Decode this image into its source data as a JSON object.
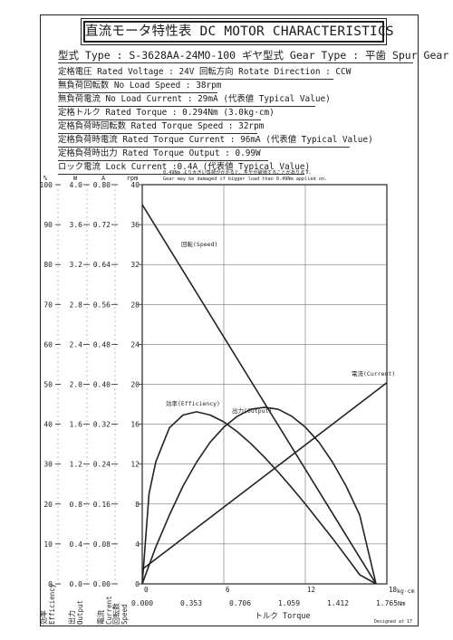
{
  "title": "直流モータ特性表 DC MOTOR CHARACTERISTICS",
  "specs": [
    {
      "text": "型式 Type : S-3628AA-24MO-100  ギヤ型式 Gear Type : 平歯  Spur Gear"
    },
    {
      "text": "定格電圧 Rated Voltage : 24V  回転方向 Rotate Direction : CCW"
    },
    {
      "text": "無負荷回転数 No Load Speed : 38rpm"
    },
    {
      "text": "無負荷電流 No Load Current : 29mA (代表値 Typical Value)"
    },
    {
      "text": "定格トルク Rated Torque : 0.294Nm (3.0kg·cm)"
    },
    {
      "text": "定格負荷時回転数 Rated Torque Speed : 32rpm"
    },
    {
      "text": "定格負荷時電流 Rated Torque Current : 96mA (代表値 Typical Value)"
    },
    {
      "text": "定格負荷時出力 Rated Torque Output : 0.99W"
    },
    {
      "text": "ロック電流 Lock Current :0.4A (代表値 Typical Value)"
    }
  ],
  "warning": {
    "jp": "0.49Nm より大きい負荷がかかると、ギヤが破損することがあります。",
    "en": "Gear may be damaged if bigger load than 0.49Nm applied on."
  },
  "footer": "Designed at 17",
  "colors": {
    "ink": "#222222",
    "grid": "#555555"
  },
  "chart_data": {
    "type": "line",
    "x_axis": {
      "label": "トルク Torque",
      "kgcm_range": [
        0,
        18
      ],
      "kgcm_ticks": [
        "0",
        "6",
        "12",
        "18"
      ],
      "kgcm_unit": "kg·cm",
      "nm_range": [
        0,
        1.765
      ],
      "nm_ticks": [
        "0.000",
        "0.353",
        "0.706",
        "1.059",
        "1.412",
        "1.765"
      ],
      "nm_unit": "Nm"
    },
    "y_axes": [
      {
        "key": "efficiency",
        "label": "効率 Efficiency",
        "unit": "%",
        "range": [
          0,
          100
        ],
        "ticks": [
          "0",
          "10",
          "20",
          "30",
          "40",
          "50",
          "60",
          "70",
          "80",
          "90",
          "100"
        ]
      },
      {
        "key": "output",
        "label": "出力 Output",
        "unit": "W",
        "range": [
          0,
          4.0
        ],
        "ticks": [
          "0.0",
          "0.4",
          "0.8",
          "1.2",
          "1.6",
          "2.0",
          "2.4",
          "2.8",
          "3.2",
          "3.6",
          "4.0"
        ]
      },
      {
        "key": "current",
        "label": "電流 Current",
        "unit": "A",
        "range": [
          0,
          0.8
        ],
        "ticks": [
          "0.00",
          "0.08",
          "0.16",
          "0.24",
          "0.32",
          "0.40",
          "0.48",
          "0.56",
          "0.64",
          "0.72",
          "0.80"
        ]
      },
      {
        "key": "speed",
        "label": "回転数 Speed",
        "unit": "rpm",
        "range": [
          0,
          40
        ],
        "ticks": [
          "0",
          "4",
          "8",
          "12",
          "16",
          "20",
          "24",
          "28",
          "32",
          "36",
          "40"
        ]
      }
    ],
    "series": [
      {
        "name": "回転(Speed)",
        "axis": "speed",
        "x": [
          0,
          17.2
        ],
        "y": [
          38,
          0
        ]
      },
      {
        "name": "電流(Current)",
        "axis": "current",
        "x": [
          0,
          18
        ],
        "y": [
          0.029,
          0.403
        ]
      },
      {
        "name": "効率(Efficiency)",
        "axis": "efficiency",
        "x": [
          0,
          0.5,
          1,
          2,
          3,
          4,
          5,
          6,
          7,
          8,
          9,
          10,
          11,
          12,
          13,
          14,
          15,
          16,
          17.2
        ],
        "y": [
          0,
          22.6,
          30.6,
          39.1,
          42.3,
          43.1,
          42.3,
          40.6,
          38.1,
          35.1,
          31.7,
          28,
          24.1,
          20,
          15.7,
          11.4,
          6.9,
          2.3,
          0
        ]
      },
      {
        "name": "出力(Output)",
        "axis": "output",
        "x": [
          0,
          1,
          2,
          3,
          4,
          5,
          6,
          7,
          8,
          9,
          10,
          11,
          12,
          13,
          14,
          15,
          16,
          17.2
        ],
        "y": [
          0,
          0.37,
          0.69,
          0.98,
          1.22,
          1.42,
          1.57,
          1.68,
          1.75,
          1.77,
          1.75,
          1.68,
          1.57,
          1.42,
          1.22,
          0.98,
          0.69,
          0
        ]
      }
    ],
    "grid": true
  }
}
